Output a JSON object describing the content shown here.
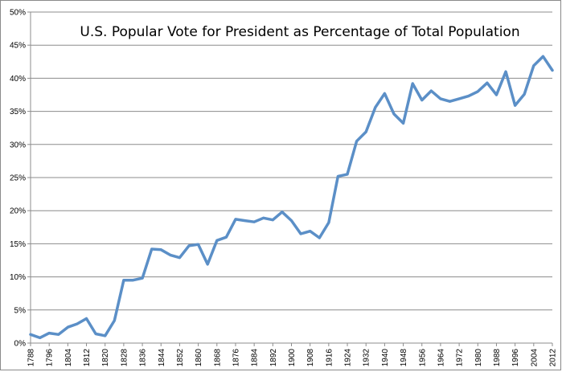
{
  "chart_data": {
    "type": "line",
    "title": "U.S. Popular Vote for President as Percentage of Total Population",
    "xlabel": "",
    "ylabel": "",
    "ylim": [
      0,
      50
    ],
    "yticks": [
      "0%",
      "5%",
      "10%",
      "15%",
      "20%",
      "25%",
      "30%",
      "35%",
      "40%",
      "45%",
      "50%"
    ],
    "xticks": [
      "1788",
      "1796",
      "1804",
      "1812",
      "1820",
      "1828",
      "1836",
      "1844",
      "1852",
      "1860",
      "1868",
      "1876",
      "1884",
      "1892",
      "1900",
      "1908",
      "1916",
      "1924",
      "1932",
      "1940",
      "1948",
      "1956",
      "1964",
      "1972",
      "1980",
      "1988",
      "1996",
      "2004",
      "2012"
    ],
    "grid": "horizontal",
    "line_color": "#5b8fc7",
    "series": [
      {
        "x": [
          1788,
          1792,
          1796,
          1800,
          1804,
          1808,
          1812,
          1816,
          1820,
          1824,
          1828,
          1832,
          1836,
          1840,
          1844,
          1848,
          1852,
          1856,
          1860,
          1864,
          1868,
          1872,
          1876,
          1880,
          1884,
          1888,
          1892,
          1896,
          1900,
          1904,
          1908,
          1912,
          1916,
          1920,
          1924,
          1928,
          1932,
          1936,
          1940,
          1944,
          1948,
          1952,
          1956,
          1960,
          1964,
          1968,
          1972,
          1976,
          1980,
          1984,
          1988,
          1992,
          1996,
          2000,
          2004,
          2008,
          2012
        ],
        "values": [
          1.3,
          0.8,
          1.5,
          1.3,
          2.4,
          2.9,
          3.7,
          1.4,
          1.1,
          3.4,
          9.5,
          9.5,
          9.8,
          14.2,
          14.1,
          13.3,
          12.9,
          14.7,
          14.9,
          11.9,
          15.5,
          16.0,
          18.7,
          18.5,
          18.3,
          18.9,
          18.6,
          19.8,
          18.5,
          16.5,
          16.9,
          15.9,
          18.2,
          25.2,
          25.5,
          30.5,
          31.9,
          35.6,
          37.7,
          34.6,
          33.2,
          39.2,
          36.7,
          38.1,
          36.9,
          36.5,
          36.9,
          37.3,
          38.0,
          39.3,
          37.5,
          41.0,
          35.9,
          37.6,
          41.9,
          43.3,
          41.2
        ]
      }
    ]
  }
}
